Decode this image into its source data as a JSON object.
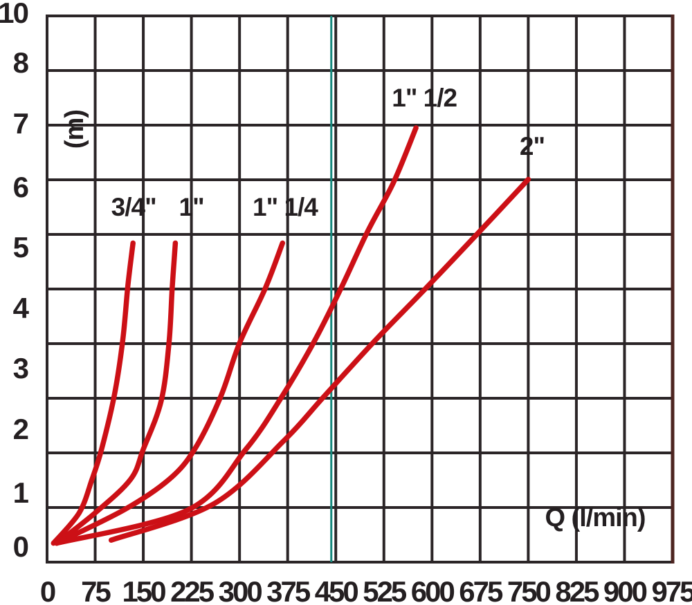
{
  "y_axis": {
    "title": "(m)",
    "ticks": [
      "10",
      "8",
      "7",
      "6",
      "5",
      "4",
      "3",
      "2",
      "1",
      "0"
    ]
  },
  "x_axis": {
    "title": "Q (l/min)",
    "ticks": [
      "0",
      "75",
      "150",
      "225",
      "300",
      "375",
      "450",
      "525",
      "600",
      "675",
      "750",
      "825",
      "900",
      "975"
    ]
  },
  "colors": {
    "background": "#ffffff",
    "grid": "#2b2527",
    "curve_red": "#cc1016",
    "teal_reference_line": "#17897e",
    "right_border_maroon": "#4d2420",
    "text": "#241f21"
  },
  "chart_data": {
    "type": "line",
    "title": "",
    "xlabel": "Q (l/min)",
    "ylabel": "(m)",
    "x_range": [
      0,
      975
    ],
    "y_range": [
      0,
      10
    ],
    "x_tick_step": 75,
    "grid": true,
    "legend_position": "inline-labels",
    "series": [
      {
        "name": "3/4\"",
        "slug": "3-4in",
        "label_pos": [
          135,
          5.6
        ],
        "points": [
          [
            10,
            0.05
          ],
          [
            50,
            0.55
          ],
          [
            70,
            1.1
          ],
          [
            85,
            1.6
          ],
          [
            105,
            2.5
          ],
          [
            118,
            3.4
          ],
          [
            126,
            4.3
          ],
          [
            134,
            5.0
          ]
        ]
      },
      {
        "name": "1\"",
        "slug": "1in",
        "label_pos": [
          225,
          5.6
        ],
        "points": [
          [
            15,
            0.05
          ],
          [
            75,
            0.55
          ],
          [
            130,
            1.1
          ],
          [
            150,
            1.6
          ],
          [
            178,
            2.4
          ],
          [
            190,
            3.35
          ],
          [
            195,
            4.25
          ],
          [
            200,
            5.0
          ]
        ]
      },
      {
        "name": "1\" 1/4",
        "slug": "1-1-4in",
        "label_pos": [
          371,
          5.6
        ],
        "points": [
          [
            15,
            0.05
          ],
          [
            120,
            0.6
          ],
          [
            190,
            1.1
          ],
          [
            230,
            1.6
          ],
          [
            270,
            2.45
          ],
          [
            300,
            3.35
          ],
          [
            340,
            4.25
          ],
          [
            367,
            5.0
          ]
        ]
      },
      {
        "name": "1\" 1/2",
        "slug": "1-1-2in",
        "label_pos": [
          588,
          7.4
        ],
        "points": [
          [
            15,
            0.05
          ],
          [
            220,
            0.6
          ],
          [
            310,
            1.6
          ],
          [
            365,
            2.45
          ],
          [
            415,
            3.35
          ],
          [
            458,
            4.25
          ],
          [
            500,
            5.2
          ],
          [
            540,
            6.0
          ],
          [
            575,
            6.9
          ]
        ]
      },
      {
        "name": "2\"",
        "slug": "2in",
        "label_pos": [
          756,
          6.6
        ],
        "points": [
          [
            100,
            0.1
          ],
          [
            260,
            0.7
          ],
          [
            370,
            1.75
          ],
          [
            430,
            2.45
          ],
          [
            512,
            3.4
          ],
          [
            590,
            4.25
          ],
          [
            675,
            5.2
          ],
          [
            750,
            6.05
          ]
        ]
      }
    ],
    "annotations": {
      "vertical_teal_line_x": 443
    }
  }
}
